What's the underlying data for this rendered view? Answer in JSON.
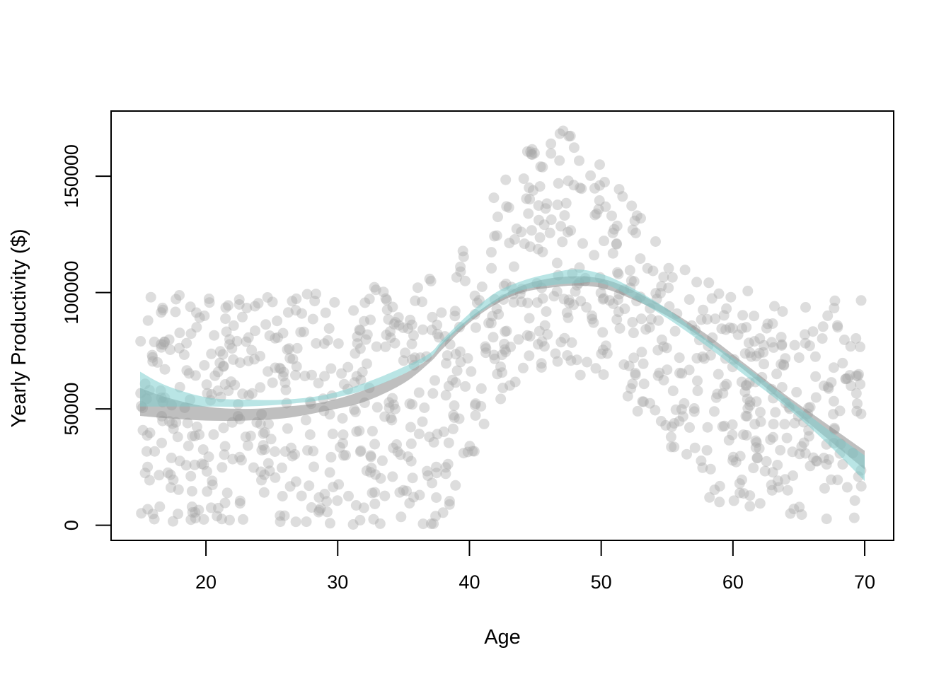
{
  "chart_data": {
    "type": "scatter",
    "xlabel": "Age",
    "ylabel": "Yearly Productivity ($)",
    "xlim": [
      12.8,
      72.2
    ],
    "ylim": [
      -6500,
      178000
    ],
    "x_ticks": [
      20,
      30,
      40,
      50,
      60,
      70
    ],
    "y_ticks": [
      0,
      50000,
      100000,
      150000
    ],
    "x_tick_labels": [
      "20",
      "30",
      "40",
      "50",
      "60",
      "70"
    ],
    "y_tick_labels": [
      "0",
      "50000",
      "100000",
      "150000"
    ],
    "grid": false,
    "legend": "none",
    "colors": {
      "points": "#a6a6a6",
      "band_gray": "#8a8a8a",
      "band_teal": "#7fcfcf",
      "overlap": "#5f8f8a"
    },
    "scatter_summary": {
      "n_points": 1000,
      "x_range": [
        15,
        70
      ],
      "y_range": [
        0,
        172000
      ]
    },
    "series": [
      {
        "type": "band",
        "color": "gray",
        "x": [
          15,
          17,
          20,
          23,
          26,
          29,
          32,
          35,
          37,
          38,
          40,
          42,
          44,
          46,
          48,
          50,
          52,
          55,
          58,
          61,
          64,
          67,
          70
        ],
        "lower": [
          47000,
          46000,
          45000,
          45000,
          46000,
          49000,
          53000,
          61000,
          70000,
          76000,
          87000,
          95000,
          100000,
          102000,
          103000,
          102000,
          98000,
          90000,
          79000,
          66000,
          52000,
          38000,
          24000
        ],
        "upper": [
          59000,
          55000,
          51000,
          50000,
          51000,
          53000,
          58000,
          65000,
          72000,
          79000,
          89000,
          97000,
          103000,
          106000,
          107000,
          106000,
          102000,
          93000,
          82000,
          69000,
          56000,
          44000,
          32000
        ]
      },
      {
        "type": "band",
        "color": "teal",
        "x": [
          15,
          17,
          20,
          23,
          26,
          29,
          32,
          35,
          37,
          38,
          40,
          42,
          44,
          46,
          48,
          50,
          52,
          55,
          58,
          61,
          64,
          67,
          70
        ],
        "lower": [
          51000,
          51000,
          51000,
          51000,
          52000,
          54000,
          58000,
          65000,
          72000,
          78000,
          88000,
          96000,
          101000,
          103000,
          104000,
          104000,
          99000,
          89000,
          77000,
          64000,
          51000,
          36000,
          19000
        ],
        "upper": [
          66000,
          60000,
          55000,
          54000,
          54000,
          56000,
          61000,
          68000,
          74000,
          80000,
          91000,
          100000,
          105000,
          108000,
          110000,
          108000,
          103000,
          93000,
          80000,
          68000,
          55000,
          42000,
          30000
        ]
      }
    ]
  }
}
